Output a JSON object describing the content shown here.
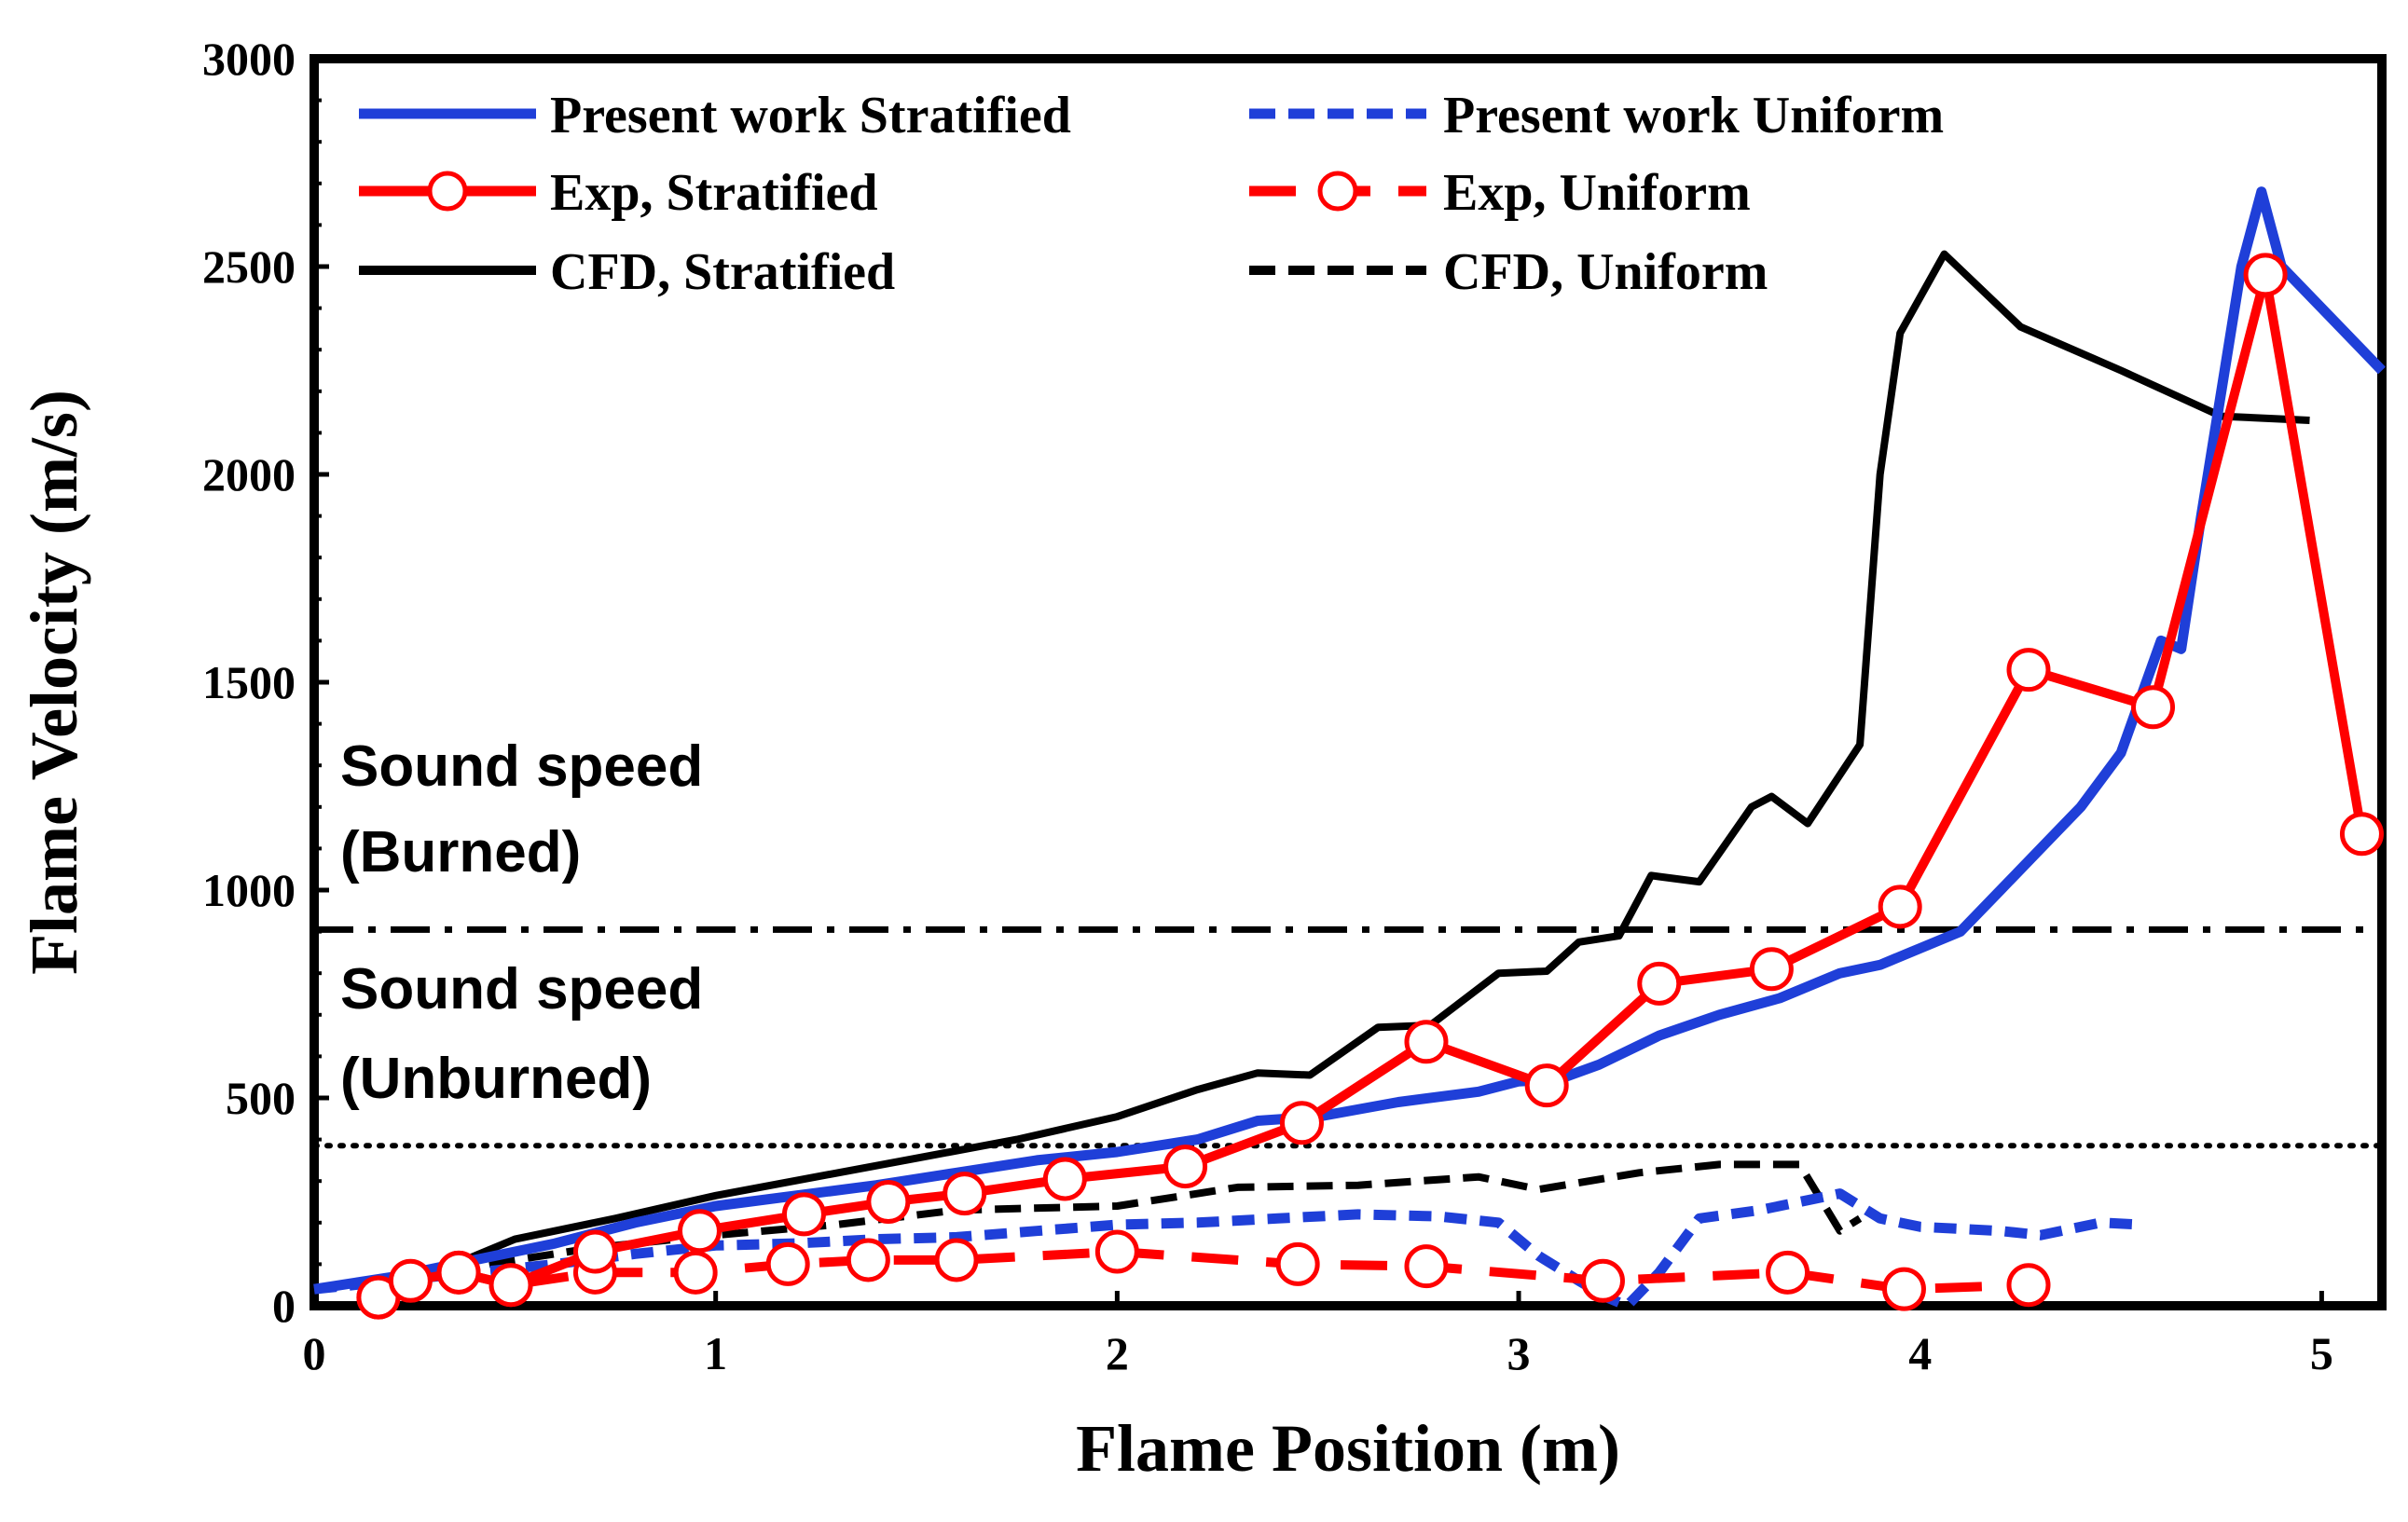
{
  "chart_data": {
    "type": "line",
    "title": "",
    "xlabel": "Flame Position (m)",
    "ylabel": "Flame Velocity (m/s)",
    "xlim": [
      0,
      5.15
    ],
    "ylim": [
      0,
      3000
    ],
    "xticks": [
      0,
      1,
      2,
      3,
      4,
      5
    ],
    "yticks": [
      0,
      500,
      1000,
      1500,
      2000,
      2500,
      3000
    ],
    "grid": false,
    "legend_position": "top",
    "series": [
      {
        "name": "Present work Stratified",
        "color": "#1f3fd8",
        "style": "solid",
        "marker": "none",
        "x": [
          0,
          0.2,
          0.4,
          0.6,
          0.8,
          1.0,
          1.2,
          1.4,
          1.6,
          1.8,
          2.0,
          2.2,
          2.35,
          2.5,
          2.7,
          2.9,
          3.0,
          3.1,
          3.2,
          3.35,
          3.5,
          3.65,
          3.8,
          3.9,
          4.0,
          4.1,
          4.2,
          4.3,
          4.4,
          4.5,
          4.6,
          4.65,
          4.7,
          4.8,
          4.85,
          4.9,
          5.0,
          5.1,
          5.15
        ],
        "y": [
          40,
          70,
          110,
          150,
          200,
          240,
          265,
          290,
          320,
          350,
          370,
          400,
          445,
          455,
          490,
          515,
          540,
          545,
          580,
          650,
          700,
          740,
          800,
          820,
          860,
          900,
          1000,
          1100,
          1200,
          1330,
          1600,
          1580,
          1900,
          2500,
          2680,
          2500,
          2400,
          2300,
          2250
        ]
      },
      {
        "name": "Present work Uniform",
        "color": "#1f3fd8",
        "style": "dashed",
        "marker": "none",
        "x": [
          0,
          0.2,
          0.4,
          0.6,
          0.8,
          1.0,
          1.2,
          1.4,
          1.6,
          1.8,
          2.0,
          2.2,
          2.4,
          2.6,
          2.8,
          2.95,
          3.05,
          3.15,
          3.22,
          3.27,
          3.35,
          3.45,
          3.6,
          3.8,
          3.9,
          4.0,
          4.2,
          4.3,
          4.45,
          4.55
        ],
        "y": [
          40,
          60,
          80,
          100,
          125,
          145,
          150,
          160,
          165,
          180,
          195,
          200,
          210,
          220,
          215,
          200,
          120,
          60,
          20,
          0,
          80,
          210,
          230,
          270,
          210,
          190,
          180,
          170,
          200,
          195
        ]
      },
      {
        "name": "Exp, Stratified",
        "color": "#ff0000",
        "style": "solid",
        "marker": "circle",
        "x": [
          0.16,
          0.24,
          0.36,
          0.49,
          0.7,
          0.96,
          1.22,
          1.43,
          1.62,
          1.87,
          2.17,
          2.46,
          2.77,
          3.07,
          3.35,
          3.63,
          3.95,
          4.27,
          4.58,
          4.86,
          5.1
        ],
        "y": [
          20,
          60,
          80,
          50,
          130,
          180,
          220,
          250,
          270,
          305,
          335,
          440,
          635,
          530,
          775,
          810,
          960,
          1530,
          1440,
          2480,
          1135
        ]
      },
      {
        "name": "Exp, Uniform",
        "color": "#ff0000",
        "style": "dashed",
        "marker": "circle",
        "x": [
          0.16,
          0.36,
          0.49,
          0.7,
          0.95,
          1.18,
          1.38,
          1.6,
          2.0,
          2.45,
          2.77,
          3.21,
          3.67,
          3.96,
          4.27
        ],
        "y": [
          20,
          80,
          50,
          80,
          80,
          100,
          110,
          110,
          130,
          100,
          95,
          60,
          80,
          40,
          50
        ]
      },
      {
        "name": "CFD, Stratified",
        "color": "#000000",
        "style": "solid",
        "marker": "none",
        "x": [
          0.15,
          0.3,
          0.5,
          0.75,
          1.0,
          1.25,
          1.5,
          1.75,
          2.0,
          2.2,
          2.35,
          2.48,
          2.65,
          2.78,
          2.95,
          3.07,
          3.15,
          3.25,
          3.33,
          3.45,
          3.58,
          3.63,
          3.72,
          3.85,
          3.9,
          3.95,
          4.06,
          4.25,
          4.5,
          4.75,
          4.97
        ],
        "y": [
          40,
          80,
          160,
          210,
          265,
          310,
          355,
          400,
          455,
          520,
          560,
          555,
          670,
          675,
          800,
          805,
          875,
          890,
          1035,
          1020,
          1200,
          1225,
          1160,
          1350,
          2000,
          2340,
          2530,
          2355,
          2250,
          2140,
          2130
        ]
      },
      {
        "name": "CFD, Uniform",
        "color": "#000000",
        "style": "dashed",
        "marker": "none",
        "x": [
          0.15,
          0.4,
          0.7,
          1.0,
          1.3,
          1.6,
          2.0,
          2.3,
          2.6,
          2.9,
          3.05,
          3.3,
          3.5,
          3.7,
          3.8,
          3.85
        ],
        "y": [
          40,
          95,
          140,
          170,
          195,
          230,
          240,
          285,
          290,
          310,
          280,
          320,
          340,
          340,
          180,
          210
        ]
      }
    ],
    "reference_lines": [
      {
        "name": "Sound speed (Burned)",
        "y": 905,
        "style": "dash-dot",
        "color": "#000000"
      },
      {
        "name": "Sound speed (Unburned)",
        "y": 385,
        "style": "dotted",
        "color": "#000000"
      }
    ],
    "annotations": [
      {
        "line1": "Sound speed",
        "line2": "(Burned)"
      },
      {
        "line1": "Sound speed",
        "line2": "(Unburned)"
      }
    ]
  }
}
